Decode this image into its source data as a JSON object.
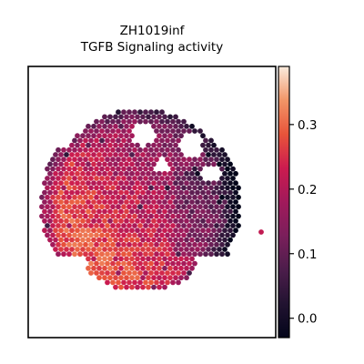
{
  "chart_data": {
    "type": "heatmap",
    "title_lines": [
      "ZH1019inf",
      "TGFB Signaling activity"
    ],
    "description": "Spatial transcriptomics hexagonal spot map colored by TGFB Signaling activity score",
    "colormap": "rocket",
    "colorbar": {
      "min": -0.03,
      "max": 0.39,
      "ticks": [
        0.0,
        0.1,
        0.2,
        0.3
      ],
      "tick_labels": [
        "0.0",
        "0.1",
        "0.2",
        "0.3"
      ]
    },
    "axes": {
      "xlabel": "",
      "ylabel": "",
      "ticks_visible": false,
      "frame": true
    },
    "grid": false,
    "value_summary": {
      "left_lower_tissue_typical": 0.3,
      "upper_right_tissue_typical": 0.14,
      "boundary_spots_typical": 0.1,
      "minimum_spots_upper_right": 0.0
    }
  }
}
